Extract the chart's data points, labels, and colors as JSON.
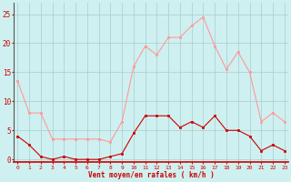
{
  "hours": [
    0,
    1,
    2,
    3,
    4,
    5,
    6,
    7,
    8,
    9,
    10,
    11,
    12,
    13,
    14,
    15,
    16,
    17,
    18,
    19,
    20,
    21,
    22,
    23
  ],
  "vent_moyen": [
    4,
    2.5,
    0.5,
    0,
    0.5,
    0,
    0,
    0,
    0.5,
    1,
    4.5,
    7.5,
    7.5,
    7.5,
    5.5,
    6.5,
    5.5,
    7.5,
    5,
    5,
    4,
    1.5,
    2.5,
    1.5
  ],
  "rafales": [
    13.5,
    8,
    8,
    3.5,
    3.5,
    3.5,
    3.5,
    3.5,
    3,
    6.5,
    16,
    19.5,
    18,
    21,
    21,
    23,
    24.5,
    19.5,
    15.5,
    18.5,
    15,
    6.5,
    8,
    6.5
  ],
  "line_moyen_color": "#cc0000",
  "line_rafales_color": "#ff9999",
  "bg_color": "#cff0f0",
  "grid_color": "#aacccc",
  "xlabel": "Vent moyen/en rafales ( km/h )",
  "xlabel_color": "#cc0000",
  "ylabel_ticks": [
    0,
    5,
    10,
    15,
    20,
    25
  ],
  "ylim": [
    -0.5,
    27
  ],
  "xlim": [
    -0.3,
    23.3
  ]
}
